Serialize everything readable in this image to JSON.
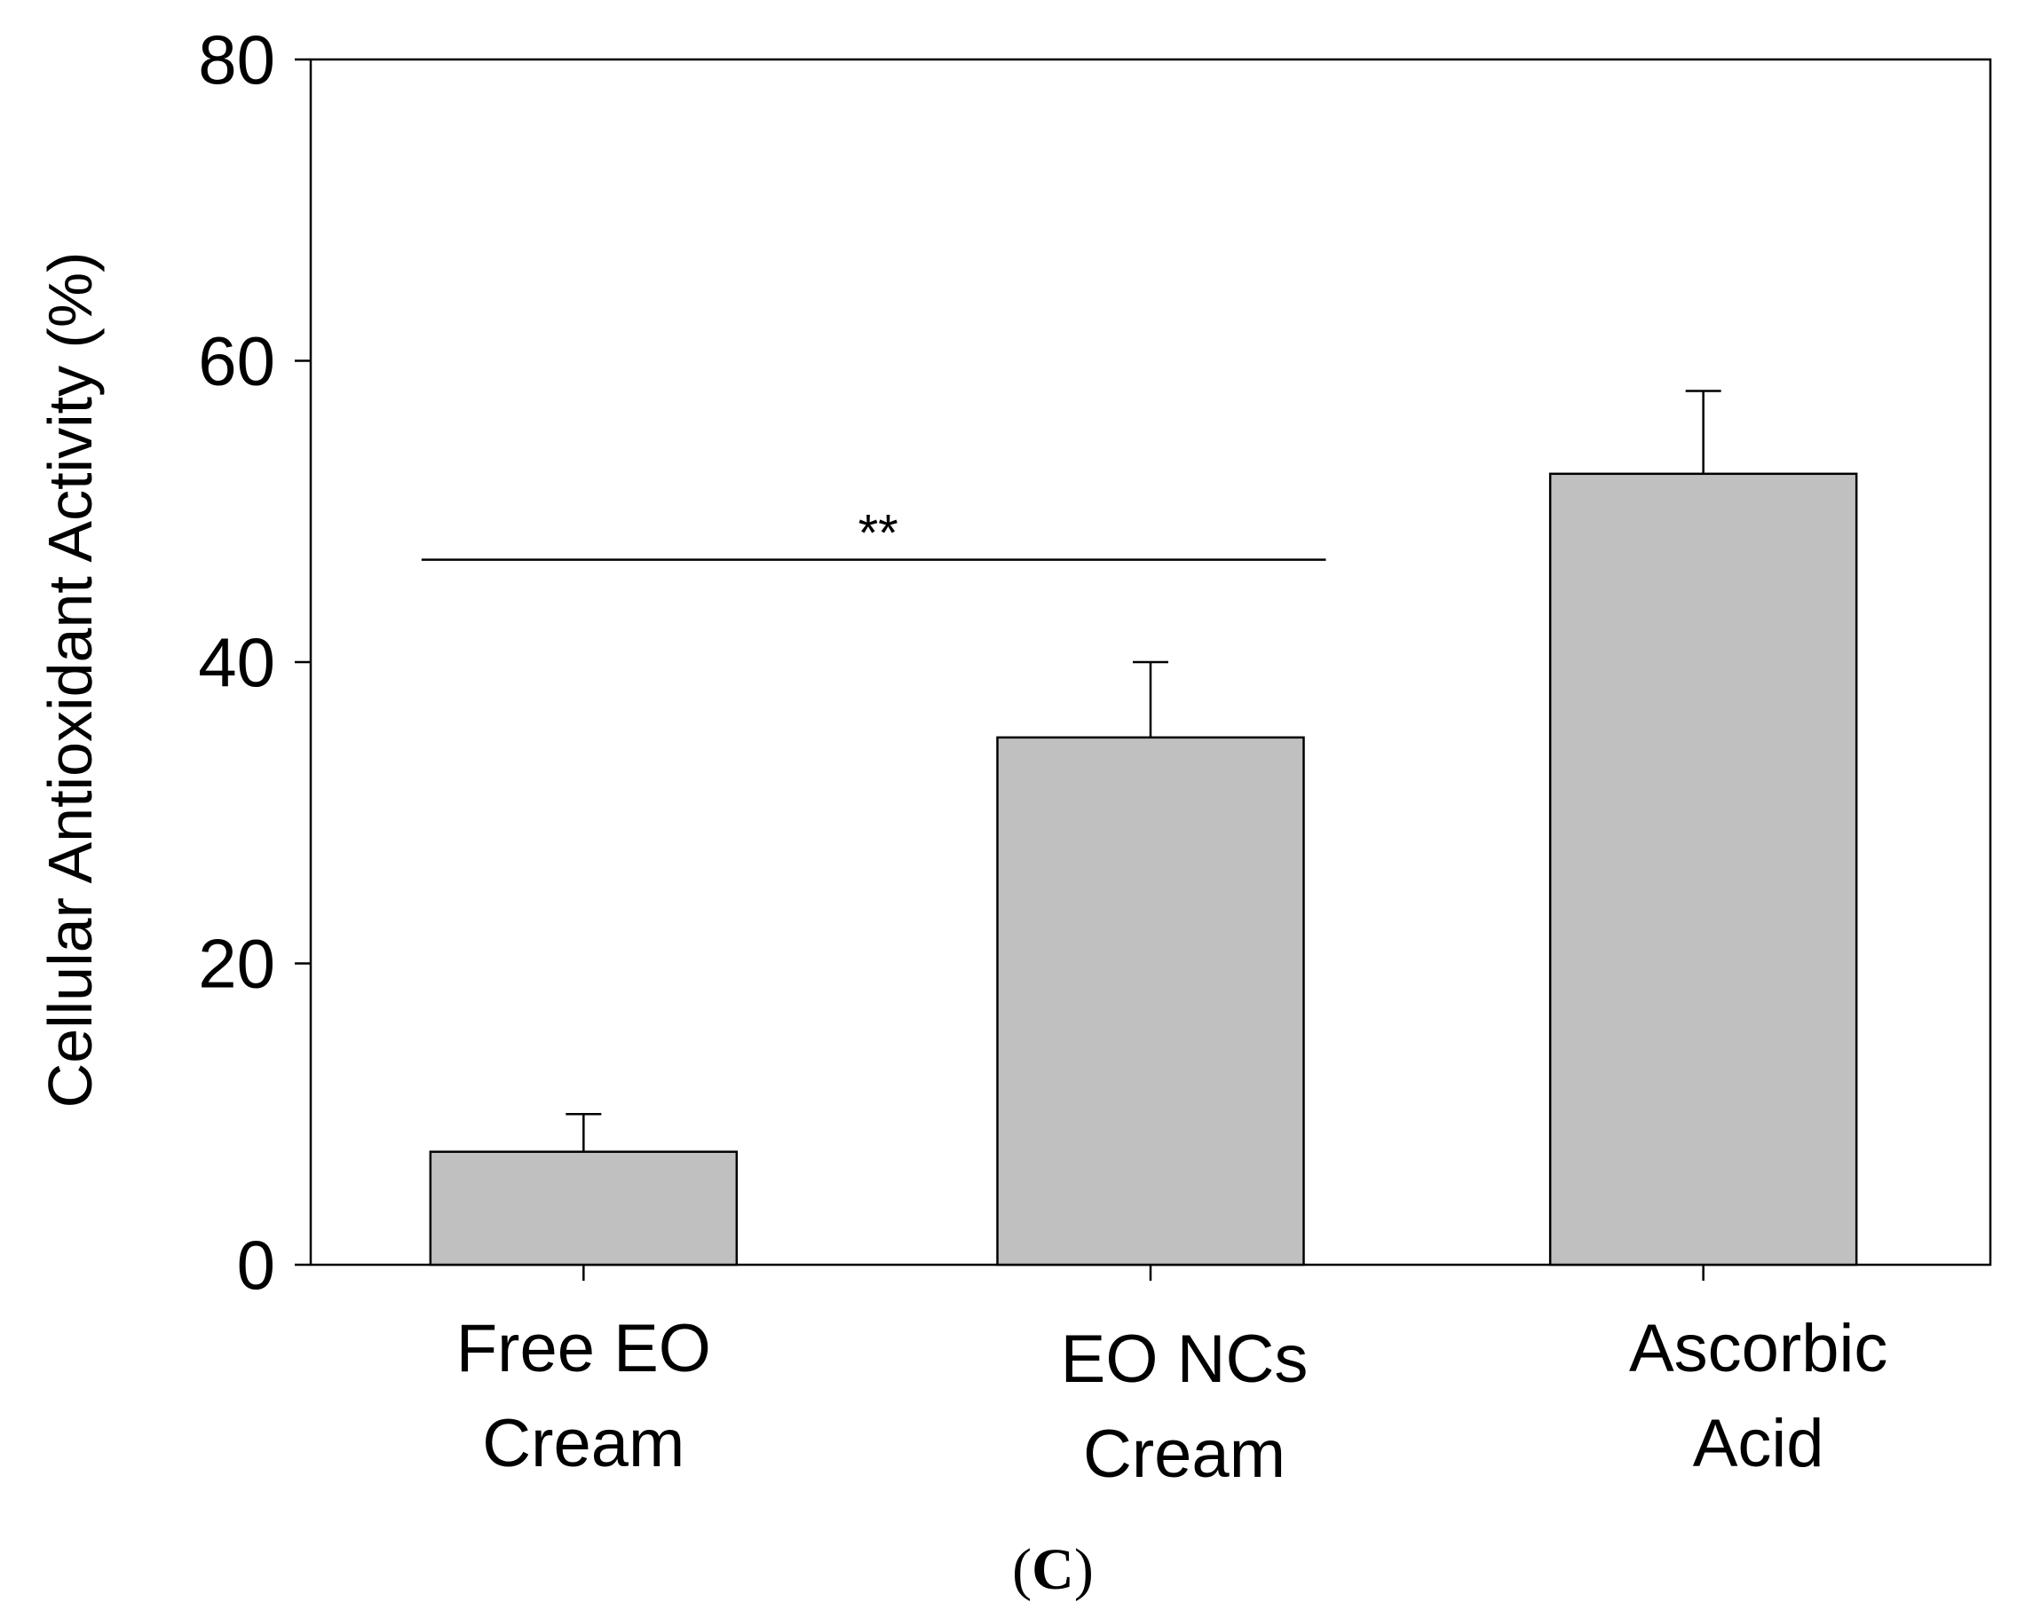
{
  "chart_data": {
    "type": "bar",
    "categories": [
      [
        "Free EO",
        "Cream"
      ],
      [
        "EO NCs",
        "Cream"
      ],
      [
        "Ascorbic",
        "Acid"
      ]
    ],
    "values": [
      7.5,
      35,
      52.5
    ],
    "errors": [
      2.5,
      5,
      5.5
    ],
    "ylabel": "Cellular Antioxidant Activity (%)",
    "ylim": [
      0,
      80
    ],
    "yticks": [
      0,
      20,
      40,
      60,
      80
    ],
    "bar_color": "#c0c0c0",
    "significance": {
      "from": 0,
      "to": 1,
      "label": "**",
      "y": 46.8
    },
    "panel_label": {
      "open": "(",
      "letter": "C",
      "close": ")"
    }
  }
}
